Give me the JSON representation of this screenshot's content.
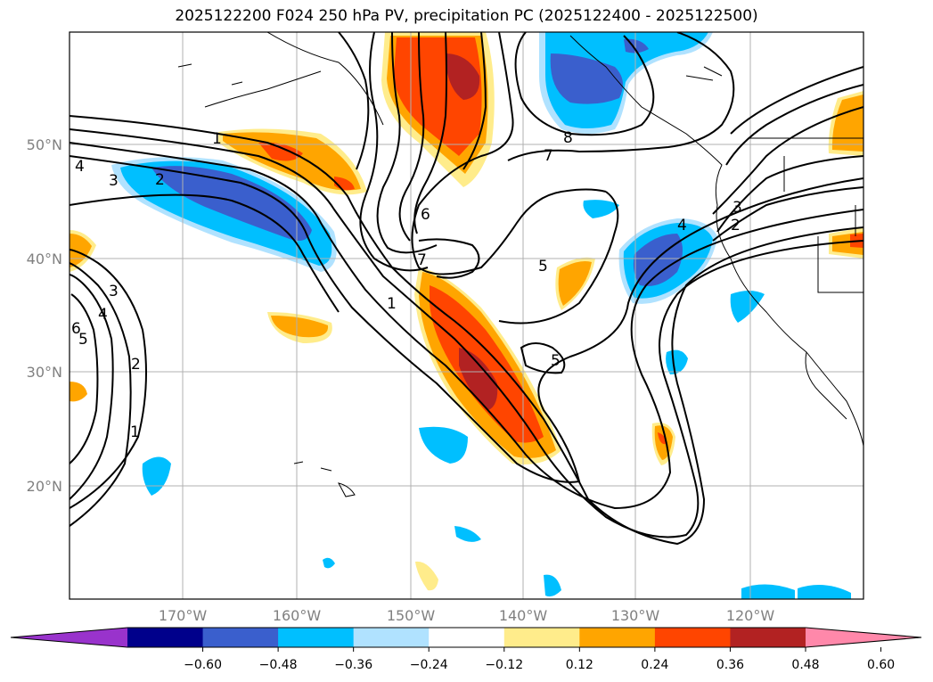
{
  "title": "2025122200 F024 250 hPa PV, precipitation PC (2025122400 - 2025122500)",
  "map": {
    "lon_ticks": [
      "170°W",
      "160°W",
      "150°W",
      "140°W",
      "130°W",
      "120°W"
    ],
    "lat_ticks": [
      "50°N",
      "40°N",
      "30°N",
      "20°N"
    ],
    "contour_labels": [
      "1",
      "1",
      "1",
      "2",
      "2",
      "2",
      "3",
      "3",
      "3",
      "4",
      "4",
      "4",
      "5",
      "5",
      "5",
      "6",
      "6",
      "7",
      "7",
      "8"
    ]
  },
  "colorbar": {
    "labels": [
      "−0.60",
      "−0.48",
      "−0.36",
      "−0.24",
      "−0.12",
      "0.12",
      "0.24",
      "0.36",
      "0.48",
      "0.60"
    ],
    "colors": [
      "#9933cc",
      "#00008b",
      "#3a5fcd",
      "#00bfff",
      "#b0e2ff",
      "#ffffff",
      "#ffec8b",
      "#ffa500",
      "#ff4500",
      "#b22222",
      "#ff88aa"
    ]
  },
  "colors": {
    "neg_light": "#b0e2ff",
    "neg_mid": "#00bfff",
    "neg_strong": "#3a5fcd",
    "pos_light": "#ffec8b",
    "pos_mid": "#ffa500",
    "pos_strong": "#ff4500",
    "pos_max": "#b22222"
  }
}
